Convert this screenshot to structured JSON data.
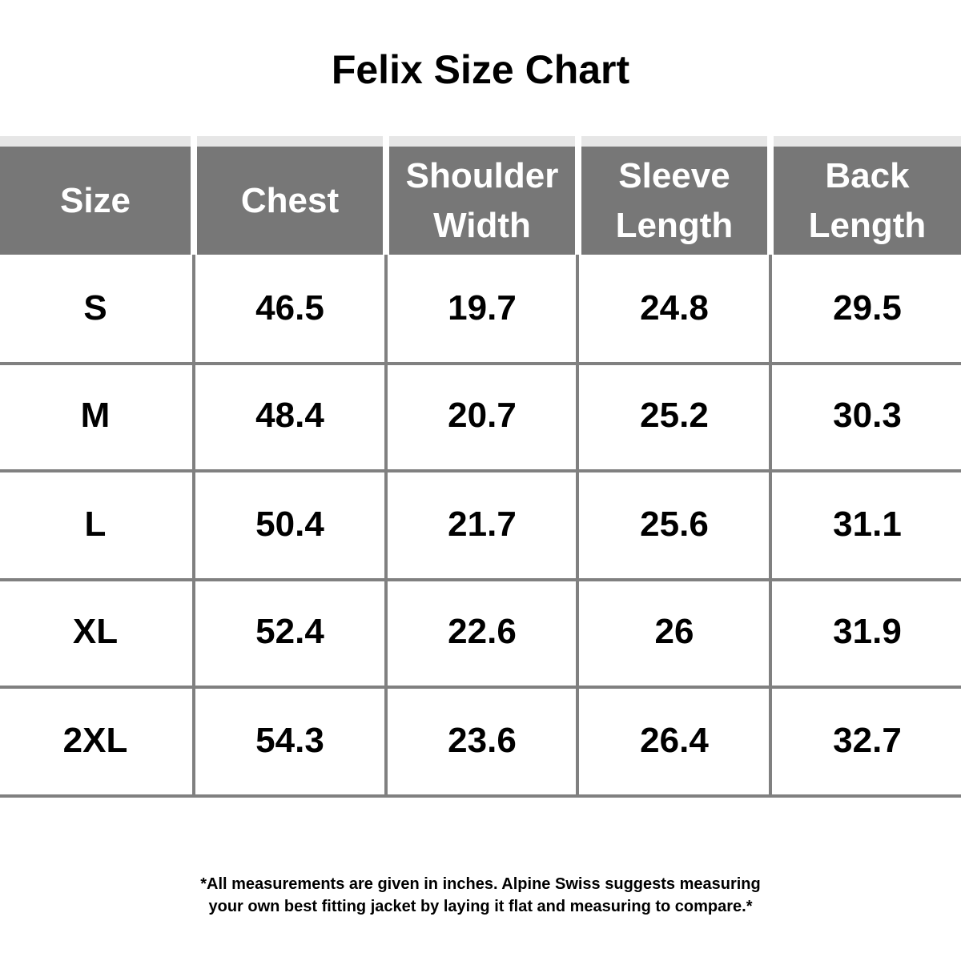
{
  "header": {
    "title": "Felix Size Chart"
  },
  "table": {
    "columns": [
      "Size",
      "Chest",
      "Shoulder\nWidth",
      "Sleeve\nLength",
      "Back\nLength"
    ],
    "rows": [
      [
        "S",
        "46.5",
        "19.7",
        "24.8",
        "29.5"
      ],
      [
        "M",
        "48.4",
        "20.7",
        "25.2",
        "30.3"
      ],
      [
        "L",
        "50.4",
        "21.7",
        "25.6",
        "31.1"
      ],
      [
        "XL",
        "52.4",
        "22.6",
        "26",
        "31.9"
      ],
      [
        "2XL",
        "54.3",
        "23.6",
        "26.4",
        "32.7"
      ]
    ]
  },
  "footnote": "*All measurements are given in inches.  Alpine Swiss suggests measuring\nyour own best fitting jacket by laying it flat and measuring to compare.*"
}
